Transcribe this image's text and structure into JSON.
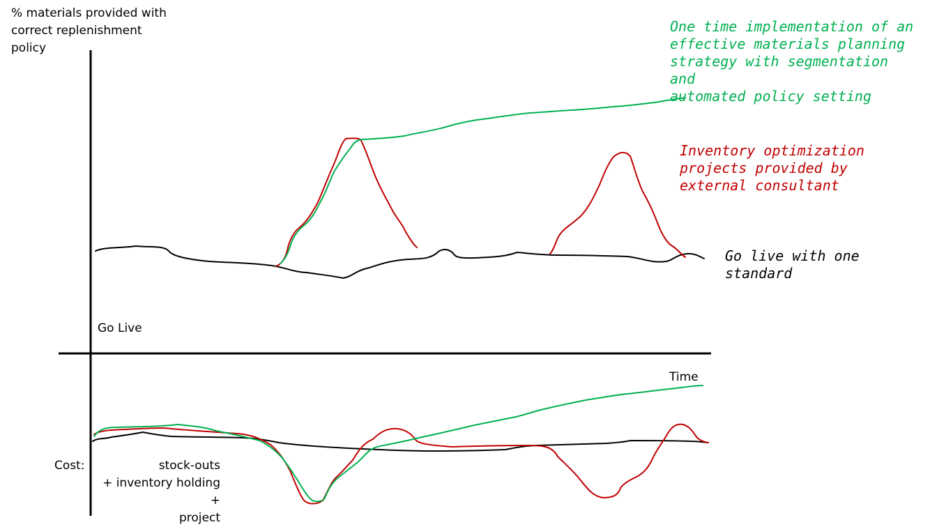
{
  "colors": {
    "axis": "#000000",
    "go_live_standard": "#000000",
    "optimization_projects": "#c00000",
    "one_time_implementation": "#00b050"
  },
  "labels": {
    "y_axis": "% materials provided with\ncorrect replenishment\npolicy",
    "go_live": "Go Live",
    "time": "Time",
    "cost": "Cost:",
    "cost_components": "stock-outs\n+ inventory holding +\nproject"
  },
  "annotations": {
    "green": "One time implementation of an\neffective materials planning\nstrategy with segmentation and\nautomated policy setting",
    "red": "Inventory optimization\nprojects provided by\nexternal consultant",
    "black": "Go live with one\nstandard"
  }
}
